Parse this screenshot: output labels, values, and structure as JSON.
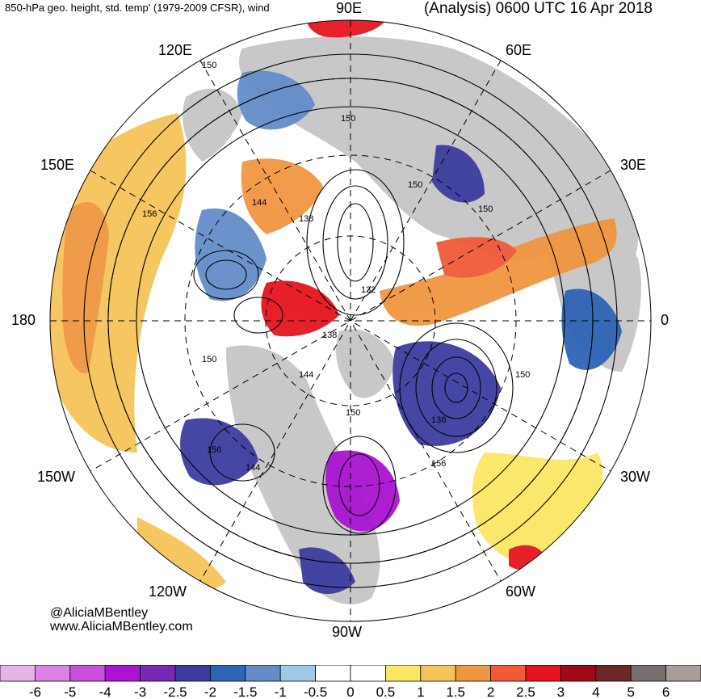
{
  "header": {
    "title_left": "850-hPa geo. height, std. temp' (1979-2009 CFSR), wind",
    "title_right": "(Analysis) 0600 UTC 16 Apr 2018"
  },
  "map": {
    "projection": "north-polar-stereographic",
    "longitude_labels": [
      "90E",
      "60E",
      "30E",
      "0",
      "30W",
      "60W",
      "90W",
      "120W",
      "150W",
      "180",
      "150E",
      "120E"
    ],
    "contour_labels": [
      "150",
      "150",
      "150",
      "150",
      "144",
      "138",
      "156",
      "132",
      "138",
      "144",
      "150",
      "150",
      "138",
      "156",
      "156",
      "144",
      "150"
    ],
    "colors": {
      "land": "#c8c8c8",
      "ocean": "#ffffff",
      "contour": "#000000",
      "graticule": "#000000"
    }
  },
  "credit": {
    "handle": "@AliciaMBentley",
    "website": "www.AliciaMBentley.com"
  },
  "colorbar": {
    "ticks": [
      "-6",
      "-5",
      "-4",
      "-3",
      "-2.5",
      "-2",
      "-1.5",
      "-1",
      "-0.5",
      "0",
      "0.5",
      "1",
      "1.5",
      "2",
      "2.5",
      "3",
      "4",
      "5",
      "6"
    ],
    "colors": [
      "#e6b4e6",
      "#dc82e6",
      "#c850dc",
      "#aa14d2",
      "#7828b4",
      "#3c3ca0",
      "#2d64b4",
      "#648cc8",
      "#a0c8e6",
      "#ffffff",
      "#ffffff",
      "#fae664",
      "#f5c35a",
      "#f09641",
      "#f05a37",
      "#e6141e",
      "#a00a14",
      "#6e2828",
      "#786e6e",
      "#aa9b9b"
    ]
  }
}
